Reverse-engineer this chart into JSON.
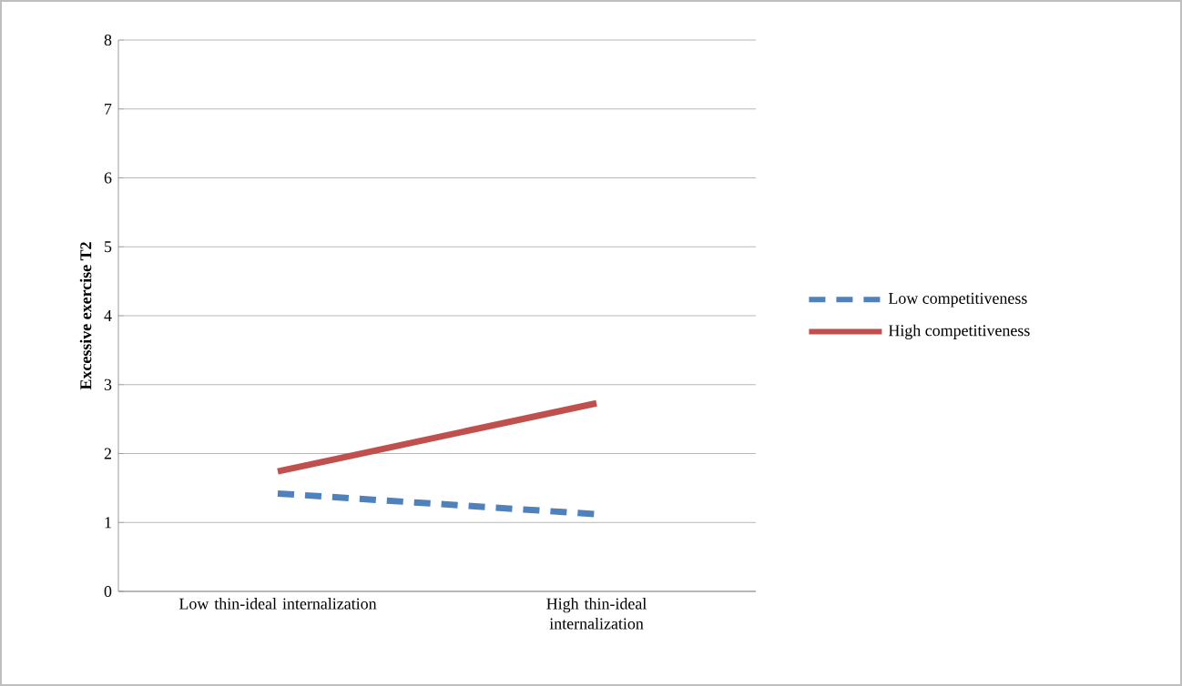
{
  "chart_data": {
    "type": "line",
    "categories": [
      "Low thin-ideal internalization",
      "High thin-ideal internalization"
    ],
    "ylabel": "Excessive exercise T2",
    "series": [
      {
        "name": "Low competitiveness",
        "color": "#4f81bd",
        "values": [
          1.42,
          1.12
        ],
        "line_style": "dashed"
      },
      {
        "name": "High competitiveness",
        "color": "#c0504d",
        "values": [
          1.74,
          2.73
        ],
        "line_style": "solid"
      }
    ],
    "ylim": [
      0,
      8
    ],
    "yticks": [
      0,
      1,
      2,
      3,
      4,
      5,
      6,
      7,
      8
    ],
    "grid": "y",
    "legend": "right",
    "marker": "none"
  }
}
